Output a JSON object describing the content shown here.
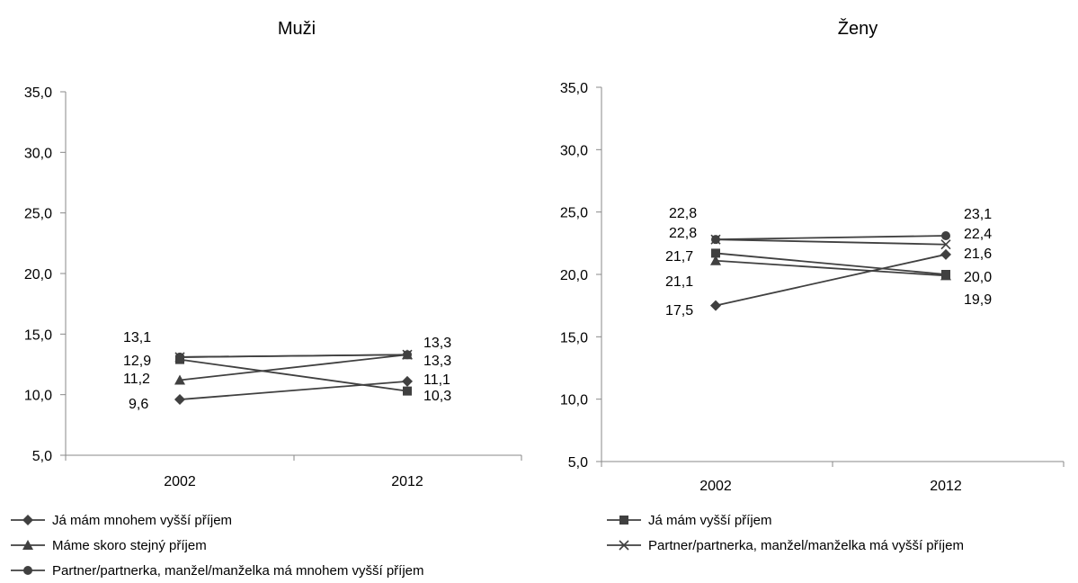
{
  "chart_data": [
    {
      "type": "line",
      "title": "Muži",
      "categories": [
        "2002",
        "2012"
      ],
      "ylim": [
        5,
        35
      ],
      "yticks": [
        "5,0",
        "10,0",
        "15,0",
        "20,0",
        "25,0",
        "30,0",
        "35,0"
      ],
      "grid": false,
      "series": [
        {
          "name": "Já mám mnohem vyšší příjem",
          "values": [
            9.6,
            11.1
          ],
          "labels": [
            "9,6",
            "11,1"
          ],
          "marker": "diamond"
        },
        {
          "name": "Já mám vyšší příjem",
          "values": [
            12.9,
            10.3
          ],
          "labels": [
            "12,9",
            "10,3"
          ],
          "marker": "square"
        },
        {
          "name": "Máme skoro stejný příjem",
          "values": [
            11.2,
            13.3
          ],
          "labels": [
            "11,2",
            "13,3"
          ],
          "marker": "triangle"
        },
        {
          "name": "Partner/partnerka, manžel/manželka má vyšší příjem",
          "values": [
            13.1,
            13.3
          ],
          "labels": [
            "13,1",
            "13,3"
          ],
          "marker": "x"
        },
        {
          "name": "Partner/partnerka, manžel/manželka má mnohem vyšší příjem",
          "values": [
            13.1,
            13.3
          ],
          "labels": [
            "",
            ""
          ],
          "marker": "circle"
        }
      ]
    },
    {
      "type": "line",
      "title": "Ženy",
      "categories": [
        "2002",
        "2012"
      ],
      "ylim": [
        5,
        35
      ],
      "yticks": [
        "5,0",
        "10,0",
        "15,0",
        "20,0",
        "25,0",
        "30,0",
        "35,0"
      ],
      "grid": false,
      "series": [
        {
          "name": "Já mám mnohem vyšší příjem",
          "values": [
            17.5,
            21.6
          ],
          "labels": [
            "17,5",
            "21,6"
          ],
          "marker": "diamond"
        },
        {
          "name": "Já mám vyšší příjem",
          "values": [
            21.7,
            20.0
          ],
          "labels": [
            "21,7",
            "20,0"
          ],
          "marker": "square"
        },
        {
          "name": "Máme skoro stejný příjem",
          "values": [
            21.1,
            19.9
          ],
          "labels": [
            "21,1",
            "19,9"
          ],
          "marker": "triangle"
        },
        {
          "name": "Partner/partnerka, manžel/manželka má vyšší příjem",
          "values": [
            22.8,
            22.4
          ],
          "labels": [
            "22,8",
            "22,4"
          ],
          "marker": "x"
        },
        {
          "name": "Partner/partnerka, manžel/manželka má mnohem vyšší příjem",
          "values": [
            22.8,
            23.1
          ],
          "labels": [
            "22,8",
            "23,1"
          ],
          "marker": "circle"
        }
      ]
    }
  ],
  "legend": [
    {
      "label": "Já mám mnohem vyšší příjem",
      "marker": "diamond"
    },
    {
      "label": "Já mám vyšší příjem",
      "marker": "square"
    },
    {
      "label": "Máme skoro stejný příjem",
      "marker": "triangle"
    },
    {
      "label": "Partner/partnerka, manžel/manželka má vyšší příjem",
      "marker": "x"
    },
    {
      "label": "Partner/partnerka, manžel/manželka má mnohem vyšší příjem",
      "marker": "circle"
    }
  ],
  "colors": {
    "line": "#404040",
    "marker": "#404040",
    "axis": "#888888"
  }
}
